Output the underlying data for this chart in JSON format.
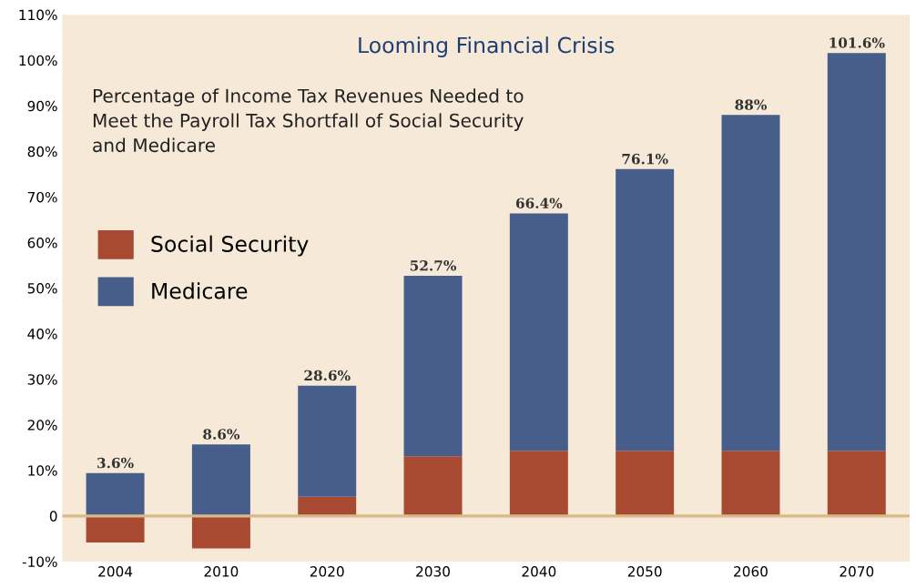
{
  "chart_data": {
    "type": "bar",
    "stacked": true,
    "title": "Looming Financial Crisis",
    "subtitle": "Percentage of Income Tax Revenues Needed to\nMeet the Payroll Tax Shortfall of Social Security\nand Medicare",
    "categories": [
      "2004",
      "2010",
      "2020",
      "2030",
      "2040",
      "2050",
      "2060",
      "2070"
    ],
    "series": [
      {
        "name": "Social Security",
        "color": "#a84a32",
        "values": [
          -5.8,
          -7.1,
          4.2,
          13.1,
          14.3,
          14.3,
          14.3,
          14.3
        ]
      },
      {
        "name": "Medicare",
        "color": "#475e8b",
        "values": [
          9.4,
          15.7,
          24.4,
          39.6,
          52.1,
          61.8,
          73.7,
          87.3
        ]
      }
    ],
    "totals": [
      "3.6%",
      "8.6%",
      "28.6%",
      "52.7%",
      "66.4%",
      "76.1%",
      "88%",
      "101.6%"
    ],
    "ylim": [
      -10,
      110
    ],
    "yticks": [
      {
        "value": -10,
        "label": "-10%"
      },
      {
        "value": 0,
        "label": "0"
      },
      {
        "value": 10,
        "label": "10%"
      },
      {
        "value": 20,
        "label": "20%"
      },
      {
        "value": 30,
        "label": "30%"
      },
      {
        "value": 40,
        "label": "40%"
      },
      {
        "value": 50,
        "label": "50%"
      },
      {
        "value": 60,
        "label": "60%"
      },
      {
        "value": 70,
        "label": "70%"
      },
      {
        "value": 80,
        "label": "80%"
      },
      {
        "value": 90,
        "label": "90%"
      },
      {
        "value": 100,
        "label": "100%"
      },
      {
        "value": 110,
        "label": "110%"
      }
    ],
    "ref_lines": [
      {
        "axis": "y",
        "value": 0,
        "color": "#d9b98a"
      }
    ],
    "grid": false,
    "legend": "top left"
  }
}
